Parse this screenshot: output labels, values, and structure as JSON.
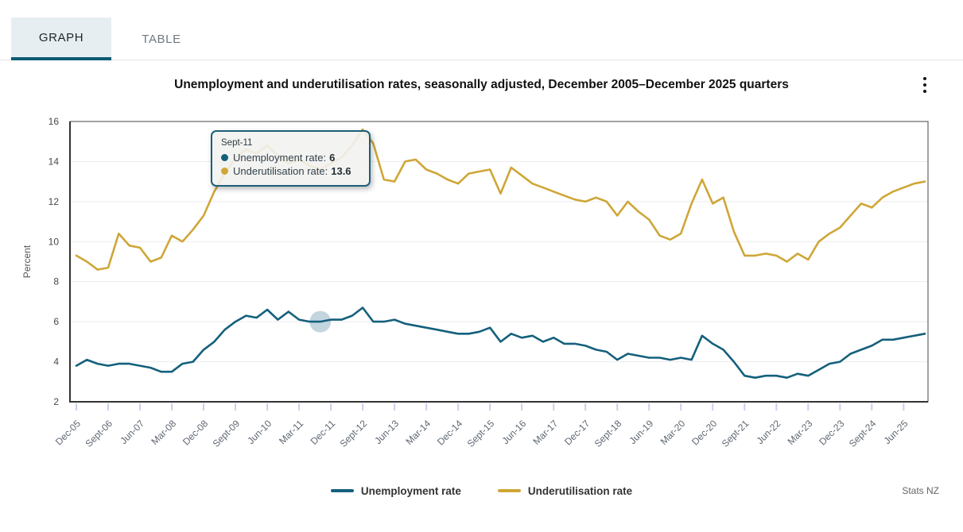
{
  "tabs": [
    {
      "label": "GRAPH",
      "active": true
    },
    {
      "label": "TABLE",
      "active": false
    }
  ],
  "title": "Unemployment and underutilisation rates, seasonally adjusted, December 2005–December 2025 quarters",
  "tooltip": {
    "title": "Sept-11",
    "items": [
      {
        "label": "Unemployment rate:",
        "value": "6"
      },
      {
        "label": "Underutilisation rate:",
        "value": "13.6"
      }
    ]
  },
  "legend": [
    {
      "label": "Unemployment rate"
    },
    {
      "label": "Underutilisation rate"
    }
  ],
  "source": "Stats NZ",
  "chart_data": {
    "type": "line",
    "title": "Unemployment and underutilisation rates, seasonally adjusted, December 2005–December 2025 quarters",
    "xlabel": "",
    "ylabel": "Percent",
    "ylim": [
      2,
      16
    ],
    "yticks": [
      2,
      4,
      6,
      8,
      10,
      12,
      14,
      16
    ],
    "grid": "horizontal",
    "legend_position": "bottom",
    "x_tick_step": 3,
    "x_tick_labels": [
      "Dec-05",
      "Sept-06",
      "Jun-07",
      "Mar-08",
      "Dec-08",
      "Sept-09",
      "Jun-10",
      "Mar-11",
      "Dec-11",
      "Sept-12",
      "Jun-13",
      "Mar-14",
      "Dec-14",
      "Sept-15",
      "Jun-16",
      "Mar-17",
      "Dec-17",
      "Sept-18",
      "Jun-19",
      "Mar-20",
      "Dec-20",
      "Sept-21",
      "Jun-22",
      "Mar-23",
      "Dec-23",
      "Sept-24",
      "Jun-25"
    ],
    "categories": [
      "Dec-05",
      "Mar-06",
      "Jun-06",
      "Sept-06",
      "Dec-06",
      "Mar-07",
      "Jun-07",
      "Sept-07",
      "Dec-07",
      "Mar-08",
      "Jun-08",
      "Sept-08",
      "Dec-08",
      "Mar-09",
      "Jun-09",
      "Sept-09",
      "Dec-09",
      "Mar-10",
      "Jun-10",
      "Sept-10",
      "Dec-10",
      "Mar-11",
      "Jun-11",
      "Sept-11",
      "Dec-11",
      "Mar-12",
      "Jun-12",
      "Sept-12",
      "Dec-12",
      "Mar-13",
      "Jun-13",
      "Sept-13",
      "Dec-13",
      "Mar-14",
      "Jun-14",
      "Sept-14",
      "Dec-14",
      "Mar-15",
      "Jun-15",
      "Sept-15",
      "Dec-15",
      "Mar-16",
      "Jun-16",
      "Sept-16",
      "Dec-16",
      "Mar-17",
      "Jun-17",
      "Sept-17",
      "Dec-17",
      "Mar-18",
      "Jun-18",
      "Sept-18",
      "Dec-18",
      "Mar-19",
      "Jun-19",
      "Sept-19",
      "Dec-19",
      "Mar-20",
      "Jun-20",
      "Sept-20",
      "Dec-20",
      "Mar-21",
      "Jun-21",
      "Sept-21",
      "Dec-21",
      "Mar-22",
      "Jun-22",
      "Sept-22",
      "Dec-22",
      "Mar-23",
      "Jun-23",
      "Sept-23",
      "Dec-23",
      "Mar-24",
      "Jun-24",
      "Sept-24",
      "Dec-24",
      "Mar-25",
      "Jun-25",
      "Sept-25",
      "Dec-25"
    ],
    "series": [
      {
        "name": "Unemployment rate",
        "color": "#14607c",
        "values": [
          3.8,
          4.1,
          3.9,
          3.8,
          3.9,
          3.9,
          3.8,
          3.7,
          3.5,
          3.5,
          3.9,
          4.0,
          4.6,
          5.0,
          5.6,
          6.0,
          6.3,
          6.2,
          6.6,
          6.1,
          6.5,
          6.1,
          6.0,
          6.0,
          6.1,
          6.1,
          6.3,
          6.7,
          6.0,
          6.0,
          6.1,
          5.9,
          5.8,
          5.7,
          5.6,
          5.5,
          5.4,
          5.4,
          5.5,
          5.7,
          5.0,
          5.4,
          5.2,
          5.3,
          5.0,
          5.2,
          4.9,
          4.9,
          4.8,
          4.6,
          4.5,
          4.1,
          4.4,
          4.3,
          4.2,
          4.2,
          4.1,
          4.2,
          4.1,
          5.3,
          4.9,
          4.6,
          4.0,
          3.3,
          3.2,
          3.3,
          3.3,
          3.2,
          3.4,
          3.3,
          3.6,
          3.9,
          4.0,
          4.4,
          4.6,
          4.8,
          5.1,
          5.1,
          5.2,
          5.3,
          5.4
        ]
      },
      {
        "name": "Underutilisation rate",
        "color": "#cfa637",
        "values": [
          9.3,
          9.0,
          8.6,
          8.7,
          10.4,
          9.8,
          9.7,
          9.0,
          9.2,
          10.3,
          10.0,
          10.6,
          11.3,
          12.5,
          13.4,
          14.2,
          14.6,
          14.4,
          14.8,
          14.3,
          13.9,
          14.1,
          13.8,
          13.6,
          13.9,
          14.2,
          14.8,
          15.6,
          14.9,
          13.1,
          13.0,
          14.0,
          14.1,
          13.6,
          13.4,
          13.1,
          12.9,
          13.4,
          13.5,
          13.6,
          12.4,
          13.7,
          13.3,
          12.9,
          12.7,
          12.5,
          12.3,
          12.1,
          12.0,
          12.2,
          12.0,
          11.3,
          12.0,
          11.5,
          11.1,
          10.3,
          10.1,
          10.4,
          11.9,
          13.1,
          11.9,
          12.2,
          10.5,
          9.3,
          9.3,
          9.4,
          9.3,
          9.0,
          9.4,
          9.1,
          10.0,
          10.4,
          10.7,
          11.3,
          11.9,
          11.7,
          12.2,
          12.5,
          12.7,
          12.9,
          13.0
        ]
      }
    ],
    "highlight": {
      "category": "Sept-11",
      "index": 23,
      "series": "Unemployment rate",
      "value": 6,
      "marker_color": "#b8cfd9"
    }
  },
  "colors": {
    "accent_teal": "#0b5a73",
    "grid": "#ebebf0",
    "axis": "#333333",
    "tick": "#c9d1ea",
    "x_label": "#5f6873",
    "y_label": "#474747"
  }
}
